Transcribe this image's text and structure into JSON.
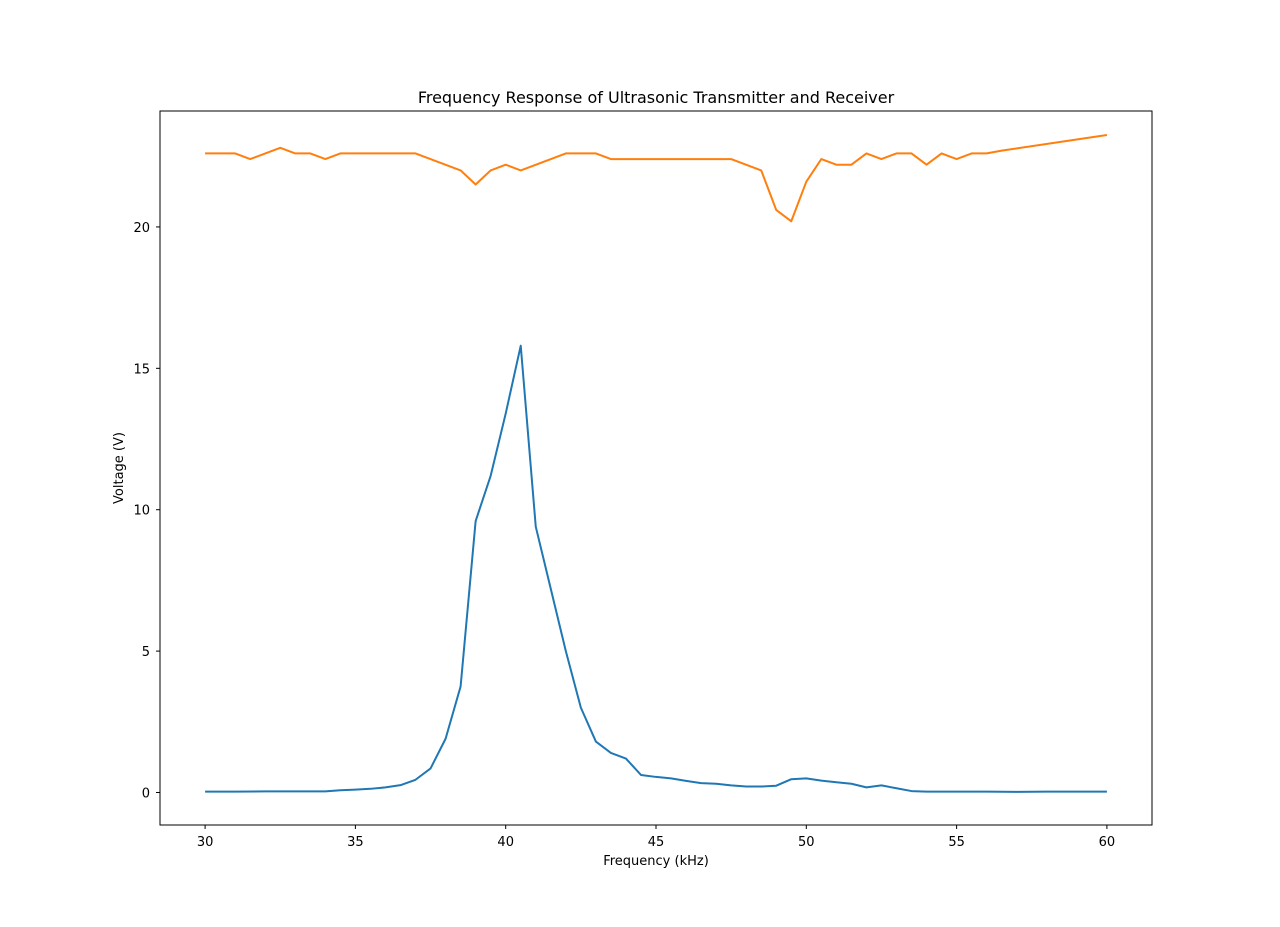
{
  "chart_data": {
    "type": "line",
    "title": "Frequency Response of Ultrasonic Transmitter and Receiver",
    "xlabel": "Frequency (kHz)",
    "ylabel": "Voltage (V)",
    "xlim": [
      28.5,
      61.5
    ],
    "ylim": [
      -1.15,
      24.1
    ],
    "xticks": [
      30,
      35,
      40,
      45,
      50,
      55,
      60
    ],
    "yticks": [
      0,
      5,
      10,
      15,
      20
    ],
    "grid": false,
    "series": [
      {
        "color": "#1f77b4",
        "points": [
          [
            30,
            0.03
          ],
          [
            31,
            0.03
          ],
          [
            32,
            0.04
          ],
          [
            33,
            0.04
          ],
          [
            34,
            0.04
          ],
          [
            34.5,
            0.08
          ],
          [
            35,
            0.1
          ],
          [
            35.5,
            0.13
          ],
          [
            36,
            0.18
          ],
          [
            36.5,
            0.26
          ],
          [
            37,
            0.45
          ],
          [
            37.5,
            0.85
          ],
          [
            38,
            1.9
          ],
          [
            38.5,
            3.75
          ],
          [
            39,
            9.6
          ],
          [
            39.5,
            11.2
          ],
          [
            40,
            13.4
          ],
          [
            40.5,
            15.8
          ],
          [
            41,
            9.4
          ],
          [
            41.5,
            7.2
          ],
          [
            42,
            5.0
          ],
          [
            42.5,
            3.0
          ],
          [
            43,
            1.8
          ],
          [
            43.5,
            1.4
          ],
          [
            44,
            1.2
          ],
          [
            44.5,
            0.62
          ],
          [
            45,
            0.55
          ],
          [
            45.5,
            0.5
          ],
          [
            46,
            0.41
          ],
          [
            46.5,
            0.33
          ],
          [
            47,
            0.31
          ],
          [
            47.5,
            0.25
          ],
          [
            48,
            0.21
          ],
          [
            48.5,
            0.21
          ],
          [
            49,
            0.24
          ],
          [
            49.5,
            0.47
          ],
          [
            50,
            0.5
          ],
          [
            50.5,
            0.42
          ],
          [
            51,
            0.36
          ],
          [
            51.5,
            0.31
          ],
          [
            52,
            0.18
          ],
          [
            52.5,
            0.25
          ],
          [
            53,
            0.15
          ],
          [
            53.5,
            0.05
          ],
          [
            54,
            0.03
          ],
          [
            55,
            0.03
          ],
          [
            56,
            0.03
          ],
          [
            57,
            0.02
          ],
          [
            58,
            0.03
          ],
          [
            59,
            0.03
          ],
          [
            60,
            0.03
          ]
        ]
      },
      {
        "color": "#ff7f0e",
        "points": [
          [
            30,
            22.6
          ],
          [
            31,
            22.6
          ],
          [
            31.5,
            22.4
          ],
          [
            32.5,
            22.8
          ],
          [
            33,
            22.6
          ],
          [
            33.5,
            22.6
          ],
          [
            34,
            22.4
          ],
          [
            34.5,
            22.6
          ],
          [
            37,
            22.6
          ],
          [
            38.5,
            22.0
          ],
          [
            39,
            21.5
          ],
          [
            39.5,
            22.0
          ],
          [
            40,
            22.2
          ],
          [
            40.5,
            22.0
          ],
          [
            42,
            22.6
          ],
          [
            43,
            22.6
          ],
          [
            43.5,
            22.4
          ],
          [
            47.5,
            22.4
          ],
          [
            48.5,
            22.0
          ],
          [
            49,
            20.6
          ],
          [
            49.5,
            20.2
          ],
          [
            50,
            21.6
          ],
          [
            50.5,
            22.4
          ],
          [
            51,
            22.2
          ],
          [
            51.5,
            22.2
          ],
          [
            52,
            22.6
          ],
          [
            52.5,
            22.4
          ],
          [
            53,
            22.6
          ],
          [
            53.5,
            22.6
          ],
          [
            54,
            22.2
          ],
          [
            54.5,
            22.6
          ],
          [
            55,
            22.4
          ],
          [
            55.5,
            22.6
          ],
          [
            56,
            22.6
          ],
          [
            56.5,
            22.7
          ],
          [
            60,
            23.25
          ]
        ]
      }
    ]
  }
}
